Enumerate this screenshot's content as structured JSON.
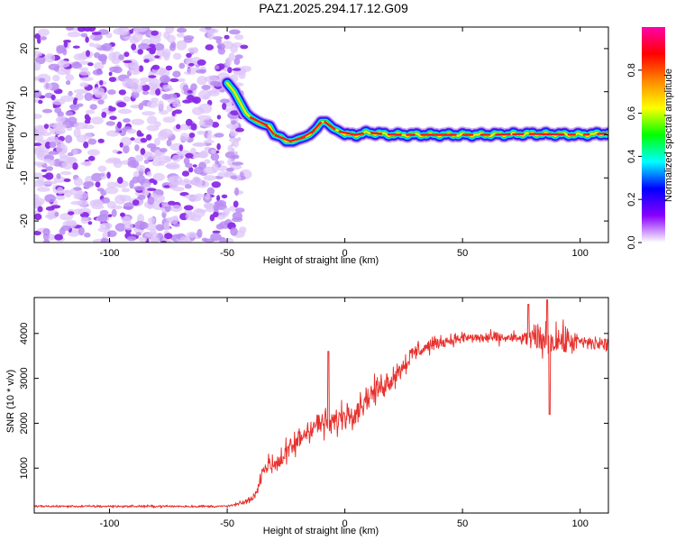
{
  "title": "PAZ1.2025.294.17.12.G09",
  "colors": {
    "line": "#e8312d",
    "frame": "#000000"
  },
  "chart_data": [
    {
      "type": "heatmap",
      "xlabel": "Height of straight line (km)",
      "ylabel": "Frequency (Hz)",
      "xlim": [
        -132,
        112
      ],
      "ylim": [
        -25,
        25
      ],
      "x_ticks": [
        -100,
        -50,
        0,
        50,
        100
      ],
      "y_ticks": [
        -20,
        -10,
        0,
        10,
        20
      ],
      "ridge": {
        "x": [
          -50,
          -47,
          -45,
          -42,
          -40,
          -37,
          -35,
          -32,
          -30,
          -27,
          -25,
          -22,
          -20,
          -17,
          -15,
          -12,
          -10,
          -8,
          -5,
          -3,
          0,
          5,
          10,
          20,
          40,
          60,
          80,
          100,
          112
        ],
        "freq": [
          12,
          10,
          8,
          5,
          4,
          3,
          2.5,
          2,
          0,
          -0.5,
          -1.5,
          -1.5,
          -1,
          -0.5,
          0,
          1.5,
          3,
          3,
          1.5,
          1,
          0,
          0,
          0.5,
          0,
          0,
          0,
          0.2,
          0,
          0.3
        ]
      },
      "noise_region_x": [
        -132,
        -45
      ],
      "colorbar": {
        "label": "Normalized spectral amplitude",
        "range": [
          0,
          1
        ],
        "ticks": [
          0.0,
          0.2,
          0.4,
          0.6,
          0.8
        ],
        "tick_labels": [
          "0.0",
          "0.2",
          "0.4",
          "0.6",
          "0.8"
        ],
        "colors": [
          "#ffffff",
          "#8800ff",
          "#0000ff",
          "#00ffff",
          "#00ff00",
          "#ffff00",
          "#ff8800",
          "#ff0000",
          "#ff00aa"
        ]
      }
    },
    {
      "type": "line",
      "xlabel": "Height of straight line (km)",
      "ylabel": "SNR (10 * v/v)",
      "xlim": [
        -132,
        112
      ],
      "ylim": [
        0,
        4800
      ],
      "x_ticks": [
        -100,
        -50,
        0,
        50,
        100
      ],
      "y_ticks": [
        1000,
        2000,
        3000,
        4000
      ],
      "trend": {
        "x": [
          -132,
          -50,
          -45,
          -40,
          -37,
          -35,
          -30,
          -25,
          -20,
          -15,
          -10,
          -5,
          0,
          5,
          10,
          15,
          20,
          25,
          30,
          40,
          50,
          60,
          70,
          80,
          90,
          100,
          112
        ],
        "snr": [
          150,
          150,
          200,
          300,
          500,
          1000,
          1100,
          1300,
          1600,
          1900,
          2000,
          2000,
          2200,
          2300,
          2600,
          2800,
          3000,
          3300,
          3600,
          3800,
          3900,
          3900,
          3900,
          3850,
          3850,
          3800,
          3750
        ]
      },
      "noise_amplitude": {
        "x": [
          -132,
          -50,
          -38,
          -30,
          0,
          30,
          40,
          75,
          80,
          95,
          100,
          112
        ],
        "amp": [
          40,
          40,
          120,
          450,
          500,
          350,
          200,
          200,
          600,
          500,
          280,
          250
        ]
      },
      "spikes": [
        {
          "x": -7,
          "snr": 3600
        },
        {
          "x": 87,
          "snr": 2200
        },
        {
          "x": 86,
          "snr": 4750
        },
        {
          "x": 78,
          "snr": 4650
        }
      ]
    }
  ]
}
